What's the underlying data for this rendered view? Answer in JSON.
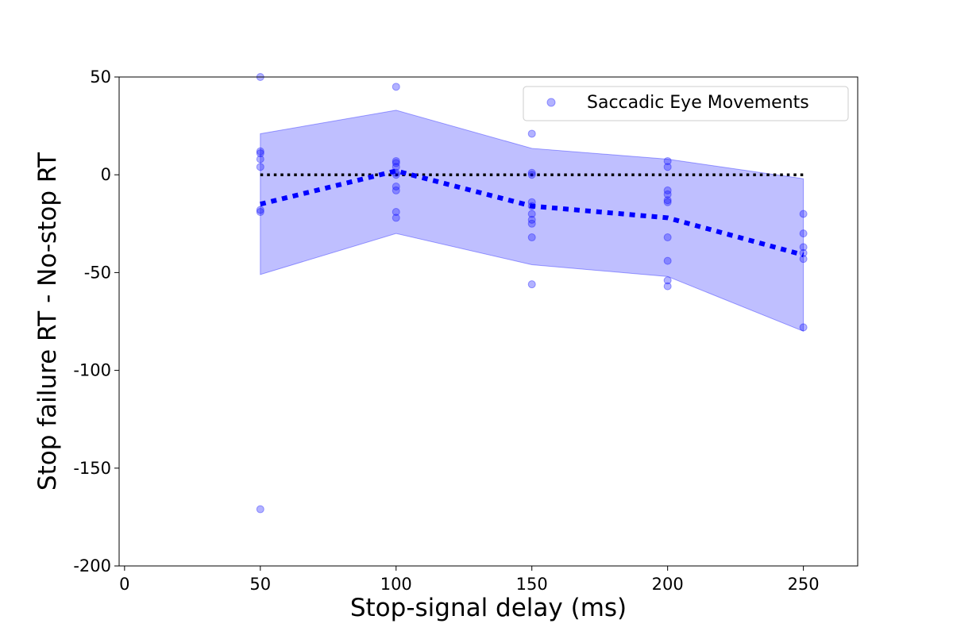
{
  "chart_data": {
    "type": "scatter",
    "title": "",
    "xlabel": "Stop-signal delay (ms)",
    "ylabel": "Stop failure RT - No-stop RT",
    "xlim": [
      -2,
      270
    ],
    "ylim": [
      -200,
      50
    ],
    "x_ticks": [
      0,
      50,
      100,
      150,
      200,
      250
    ],
    "y_ticks": [
      50,
      0,
      -50,
      -100,
      -150,
      -200
    ],
    "y_tick_labels": [
      "50",
      "0",
      "-50",
      "-100",
      "-150",
      "-200"
    ],
    "legend_position": "top-right",
    "grid": false,
    "series": [
      {
        "name": "Saccadic Eye Movements",
        "color": "#0000ff",
        "points": [
          {
            "x": 50,
            "y": 50
          },
          {
            "x": 50,
            "y": 12
          },
          {
            "x": 50,
            "y": 11
          },
          {
            "x": 50,
            "y": 8
          },
          {
            "x": 50,
            "y": 4
          },
          {
            "x": 50,
            "y": -18
          },
          {
            "x": 50,
            "y": -19
          },
          {
            "x": 50,
            "y": -171
          },
          {
            "x": 100,
            "y": 45
          },
          {
            "x": 100,
            "y": 7
          },
          {
            "x": 100,
            "y": 6
          },
          {
            "x": 100,
            "y": 4
          },
          {
            "x": 100,
            "y": 1
          },
          {
            "x": 100,
            "y": 0
          },
          {
            "x": 100,
            "y": -6
          },
          {
            "x": 100,
            "y": -8
          },
          {
            "x": 100,
            "y": -19
          },
          {
            "x": 100,
            "y": -22
          },
          {
            "x": 150,
            "y": 21
          },
          {
            "x": 150,
            "y": 1
          },
          {
            "x": 150,
            "y": 0
          },
          {
            "x": 150,
            "y": -14
          },
          {
            "x": 150,
            "y": -16
          },
          {
            "x": 150,
            "y": -20
          },
          {
            "x": 150,
            "y": -23
          },
          {
            "x": 150,
            "y": -25
          },
          {
            "x": 150,
            "y": -32
          },
          {
            "x": 150,
            "y": -56
          },
          {
            "x": 200,
            "y": 7
          },
          {
            "x": 200,
            "y": 4
          },
          {
            "x": 200,
            "y": -8
          },
          {
            "x": 200,
            "y": -10
          },
          {
            "x": 200,
            "y": -13
          },
          {
            "x": 200,
            "y": -14
          },
          {
            "x": 200,
            "y": -32
          },
          {
            "x": 200,
            "y": -44
          },
          {
            "x": 200,
            "y": -54
          },
          {
            "x": 200,
            "y": -57
          },
          {
            "x": 250,
            "y": -20
          },
          {
            "x": 250,
            "y": -30
          },
          {
            "x": 250,
            "y": -37
          },
          {
            "x": 250,
            "y": -40
          },
          {
            "x": 250,
            "y": -43
          },
          {
            "x": 250,
            "y": -78
          }
        ]
      }
    ],
    "mean_line": {
      "color": "#0000ff",
      "x": [
        50,
        100,
        150,
        200,
        250
      ],
      "y": [
        -15,
        2,
        -16,
        -22,
        -41
      ]
    },
    "band": {
      "color": "#0000ff",
      "x": [
        50,
        100,
        150,
        200,
        250
      ],
      "upper": [
        21,
        33,
        13.5,
        8,
        -2
      ],
      "lower": [
        -51,
        -30,
        -46,
        -52,
        -80
      ]
    },
    "reference_line": {
      "y": 0,
      "x_range": [
        50,
        250
      ],
      "color": "#000000"
    }
  }
}
